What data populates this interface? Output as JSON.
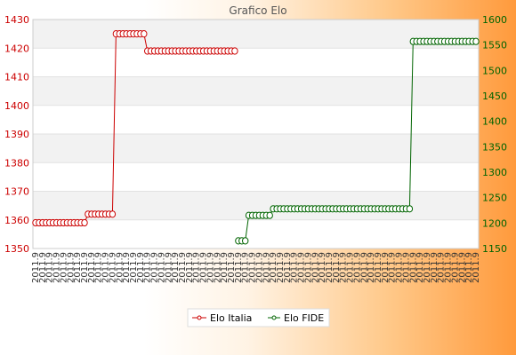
{
  "chart_data": {
    "type": "line",
    "title": "Grafico Elo",
    "legend_position": "bottom-center",
    "grid": true,
    "y_left": {
      "min": 1350,
      "max": 1430,
      "ticks": [
        1350,
        1360,
        1370,
        1380,
        1390,
        1400,
        1410,
        1420,
        1430
      ],
      "color": "#cc0000"
    },
    "y_right": {
      "min": 1150,
      "max": 1600,
      "ticks": [
        1150,
        1200,
        1250,
        1300,
        1350,
        1400,
        1450,
        1500,
        1550,
        1600
      ],
      "color": "#006400"
    },
    "x_count": 127,
    "x_tick_labels": [
      "2011.9"
    ],
    "series": [
      {
        "name": "Elo Italia",
        "axis": "left",
        "color": "#cc0000",
        "segments": [
          {
            "from": 0,
            "to": 14,
            "value": 1359
          },
          {
            "from": 15,
            "to": 22,
            "value": 1362
          },
          {
            "from": 23,
            "to": 31,
            "value": 1425
          },
          {
            "from": 32,
            "to": 57,
            "value": 1419
          }
        ]
      },
      {
        "name": "Elo FIDE",
        "axis": "right",
        "color": "#006400",
        "segments": [
          {
            "from": 58,
            "to": 60,
            "value": 1165
          },
          {
            "from": 61,
            "to": 67,
            "value": 1215
          },
          {
            "from": 68,
            "to": 107,
            "value": 1228
          },
          {
            "from": 108,
            "to": 126,
            "value": 1557
          }
        ]
      }
    ]
  }
}
